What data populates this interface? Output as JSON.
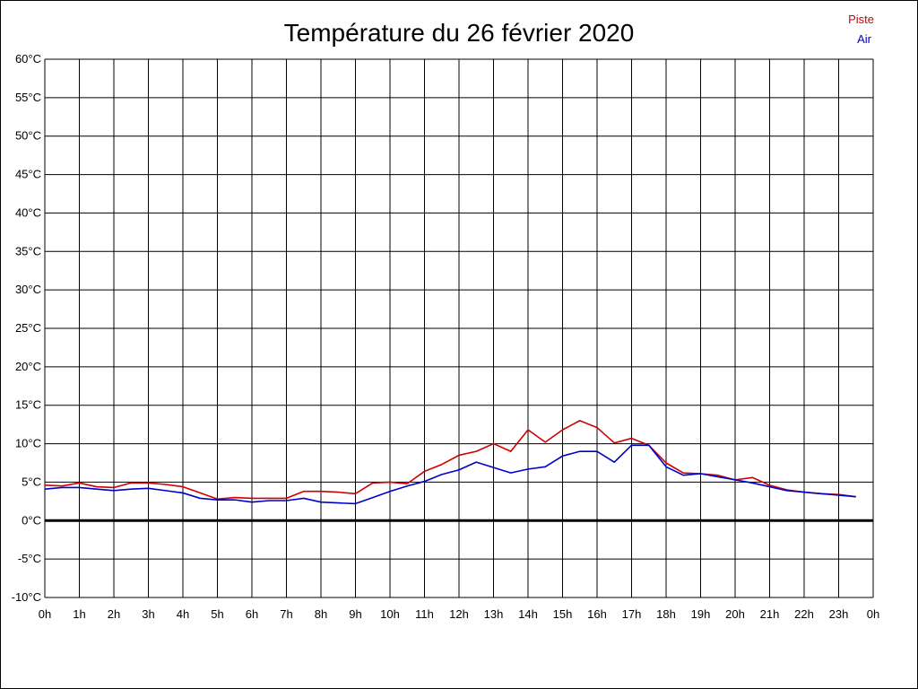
{
  "chart_data": {
    "type": "line",
    "title": "Température du 26 février 2020",
    "ylim": [
      -10,
      60
    ],
    "yticks": [
      60,
      55,
      50,
      45,
      40,
      35,
      30,
      25,
      20,
      15,
      10,
      5,
      0,
      -5,
      -10
    ],
    "ytick_labels": [
      "60°C",
      "55°C",
      "50°C",
      "45°C",
      "40°C",
      "35°C",
      "30°C",
      "25°C",
      "20°C",
      "15°C",
      "10°C",
      "5°C",
      "0°C",
      "-5°C",
      "-10°C"
    ],
    "xlim": [
      0,
      24
    ],
    "xtick_labels": [
      "0h",
      "1h",
      "2h",
      "3h",
      "4h",
      "5h",
      "6h",
      "7h",
      "8h",
      "9h",
      "10h",
      "11h",
      "12h",
      "13h",
      "14h",
      "15h",
      "16h",
      "17h",
      "18h",
      "19h",
      "20h",
      "21h",
      "22h",
      "23h",
      "0h"
    ],
    "grid": true,
    "legend_position": "top-right",
    "x": [
      0,
      0.5,
      1,
      1.5,
      2,
      2.5,
      3,
      3.5,
      4,
      4.5,
      5,
      5.5,
      6,
      6.5,
      7,
      7.5,
      8,
      8.5,
      9,
      9.5,
      10,
      10.5,
      11,
      11.5,
      12,
      12.5,
      13,
      13.5,
      14,
      14.5,
      15,
      15.5,
      16,
      16.5,
      17,
      17.5,
      18,
      18.5,
      19,
      19.5,
      20,
      20.5,
      21,
      21.5,
      22,
      22.5,
      23,
      23.5
    ],
    "series": [
      {
        "name": "Piste",
        "color": "#cc0000",
        "values": [
          4.6,
          4.5,
          4.9,
          4.4,
          4.3,
          4.9,
          4.9,
          4.7,
          4.4,
          3.6,
          2.8,
          3.0,
          2.9,
          2.9,
          2.9,
          3.8,
          3.8,
          3.7,
          3.5,
          4.9,
          5.0,
          4.8,
          6.4,
          7.3,
          8.5,
          9.0,
          10.0,
          9.0,
          11.8,
          10.2,
          11.8,
          13.0,
          12.1,
          10.1,
          10.7,
          9.8,
          7.5,
          6.2,
          6.1,
          5.9,
          5.3,
          5.6,
          4.6,
          4.0,
          3.7,
          3.5,
          3.4,
          3.1
        ]
      },
      {
        "name": "Air",
        "color": "#0000cc",
        "values": [
          4.1,
          4.3,
          4.3,
          4.1,
          3.9,
          4.1,
          4.2,
          3.9,
          3.6,
          2.9,
          2.7,
          2.7,
          2.4,
          2.6,
          2.6,
          2.9,
          2.4,
          2.3,
          2.2,
          3.0,
          3.8,
          4.5,
          5.1,
          6.0,
          6.6,
          7.6,
          6.9,
          6.2,
          6.7,
          7.0,
          8.4,
          9.0,
          9.0,
          7.6,
          9.8,
          9.8,
          7.0,
          5.9,
          6.1,
          5.7,
          5.3,
          4.9,
          4.4,
          3.9,
          3.7,
          3.5,
          3.3,
          3.1
        ]
      }
    ]
  }
}
